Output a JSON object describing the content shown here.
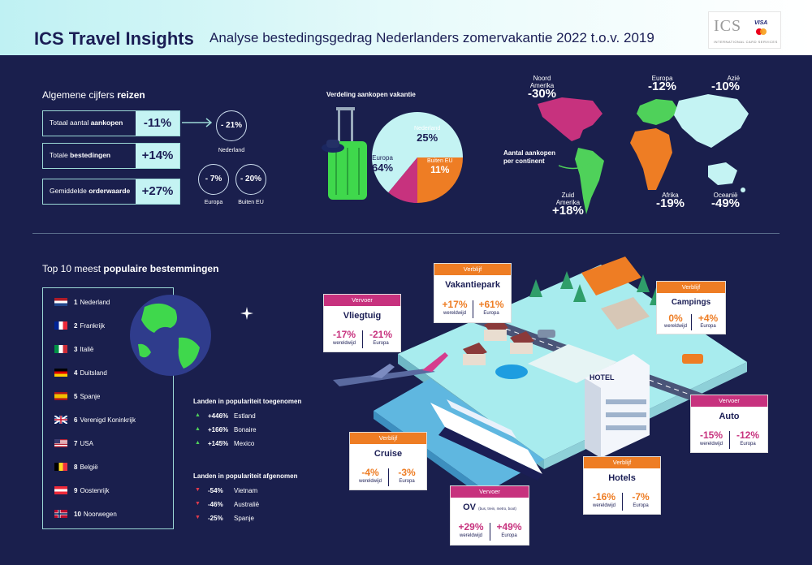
{
  "header": {
    "brand": "ICS Travel Insights",
    "subtitle": "Analyse bestedingsgedrag Nederlanders zomervakantie 2022 t.o.v. 2019",
    "logo_text": "ICS",
    "logo_visa": "VISA",
    "logo_tagline": "INTERNATIONAL CARD SERVICES"
  },
  "general": {
    "title_plain": "Algemene cijfers",
    "title_bold": "reizen",
    "rows": [
      {
        "label_plain": "Totaal aantal",
        "label_bold": "aankopen",
        "value": "-11%"
      },
      {
        "label_plain": "Totale",
        "label_bold": "bestedingen",
        "value": "+14%"
      },
      {
        "label_plain": "Gemiddelde",
        "label_bold": "orderwaarde",
        "value": "+27%"
      }
    ],
    "circles": [
      {
        "value": "- 21%",
        "label": "Nederland"
      },
      {
        "value": "- 7%",
        "label": "Europa"
      },
      {
        "value": "- 20%",
        "label": "Buiten EU"
      }
    ]
  },
  "pie": {
    "title": "Verdeling aankopen vakantie",
    "slices": [
      {
        "label": "Europa",
        "value": 64,
        "display": "64%",
        "color": "#c4f3f3"
      },
      {
        "label": "Nederland",
        "value": 25,
        "display": "25%",
        "color": "#ee7d24"
      },
      {
        "label": "Buiten EU",
        "value": 11,
        "display": "11%",
        "color": "#c7327e"
      }
    ]
  },
  "map": {
    "caption_line1": "Aantal aankopen",
    "caption_line2": "per continent",
    "regions": [
      {
        "name_line1": "Noord",
        "name_line2": "Amerika",
        "value": "-30%",
        "color": "#c7327e"
      },
      {
        "name_line1": "Europa",
        "name_line2": "",
        "value": "-12%",
        "color": "#4fd15a"
      },
      {
        "name_line1": "Azië",
        "name_line2": "",
        "value": "-10%",
        "color": "#c4f3f3"
      },
      {
        "name_line1": "Zuid",
        "name_line2": "Amerika",
        "value": "+18%",
        "color": "#4fd15a"
      },
      {
        "name_line1": "Afrika",
        "name_line2": "",
        "value": "-19%",
        "color": "#ee7d24"
      },
      {
        "name_line1": "Oceanië",
        "name_line2": "",
        "value": "-49%",
        "color": "#c4f3f3"
      }
    ]
  },
  "destinations": {
    "title_plain": "Top 10 meest",
    "title_bold": "populaire bestemmingen",
    "items": [
      {
        "rank": "1",
        "name": "Nederland",
        "flag": "nl"
      },
      {
        "rank": "2",
        "name": "Frankrijk",
        "flag": "fr"
      },
      {
        "rank": "3",
        "name": "Italië",
        "flag": "it"
      },
      {
        "rank": "4",
        "name": "Duitsland",
        "flag": "de"
      },
      {
        "rank": "5",
        "name": "Spanje",
        "flag": "es"
      },
      {
        "rank": "6",
        "name": "Verenigd Koninkrijk",
        "flag": "uk"
      },
      {
        "rank": "7",
        "name": "USA",
        "flag": "us"
      },
      {
        "rank": "8",
        "name": "België",
        "flag": "be"
      },
      {
        "rank": "9",
        "name": "Oostenrijk",
        "flag": "at"
      },
      {
        "rank": "10",
        "name": "Noorwegen",
        "flag": "no"
      }
    ]
  },
  "trends": {
    "up_title": "Landen in populariteit toegenomen",
    "up": [
      {
        "arrow": "▲",
        "value": "+446%",
        "country": "Estland"
      },
      {
        "arrow": "▲",
        "value": "+166%",
        "country": "Bonaire"
      },
      {
        "arrow": "▲",
        "value": "+145%",
        "country": "Mexico"
      }
    ],
    "down_title": "Landen in populariteit afgenomen",
    "down": [
      {
        "arrow": "▼",
        "value": "-54%",
        "country": "Vietnam"
      },
      {
        "arrow": "▼",
        "value": "-46%",
        "country": "Australië"
      },
      {
        "arrow": "▼",
        "value": "-25%",
        "country": "Spanje"
      }
    ]
  },
  "cards": {
    "vliegtuig": {
      "category": "Vervoer",
      "name": "Vliegtuig",
      "v1": "-17%",
      "l1": "wereldwijd",
      "v2": "-21%",
      "l2": "Europa"
    },
    "vakantiepark": {
      "category": "Verblijf",
      "name": "Vakantiepark",
      "v1": "+17%",
      "l1": "wereldwijd",
      "v2": "+61%",
      "l2": "Europa"
    },
    "campings": {
      "category": "Verblijf",
      "name": "Campings",
      "v1": "0%",
      "l1": "wereldwijd",
      "v2": "+4%",
      "l2": "Europa"
    },
    "auto": {
      "category": "Vervoer",
      "name": "Auto",
      "v1": "-15%",
      "l1": "wereldwijd",
      "v2": "-12%",
      "l2": "Europa"
    },
    "cruise": {
      "category": "Verblijf",
      "name": "Cruise",
      "v1": "-4%",
      "l1": "wereldwijd",
      "v2": "-3%",
      "l2": "Europa"
    },
    "hotels": {
      "category": "Verblijf",
      "name": "Hotels",
      "v1": "-16%",
      "l1": "wereldwijd",
      "v2": "-7%",
      "l2": "Europa"
    },
    "ov": {
      "category": "Vervoer",
      "name": "OV",
      "name_note": "(bus, trein, metro, boot)",
      "v1": "+29%",
      "l1": "wereldwijd",
      "v2": "+49%",
      "l2": "Europa"
    }
  },
  "scene": {
    "hotel_sign": "HOTEL"
  }
}
